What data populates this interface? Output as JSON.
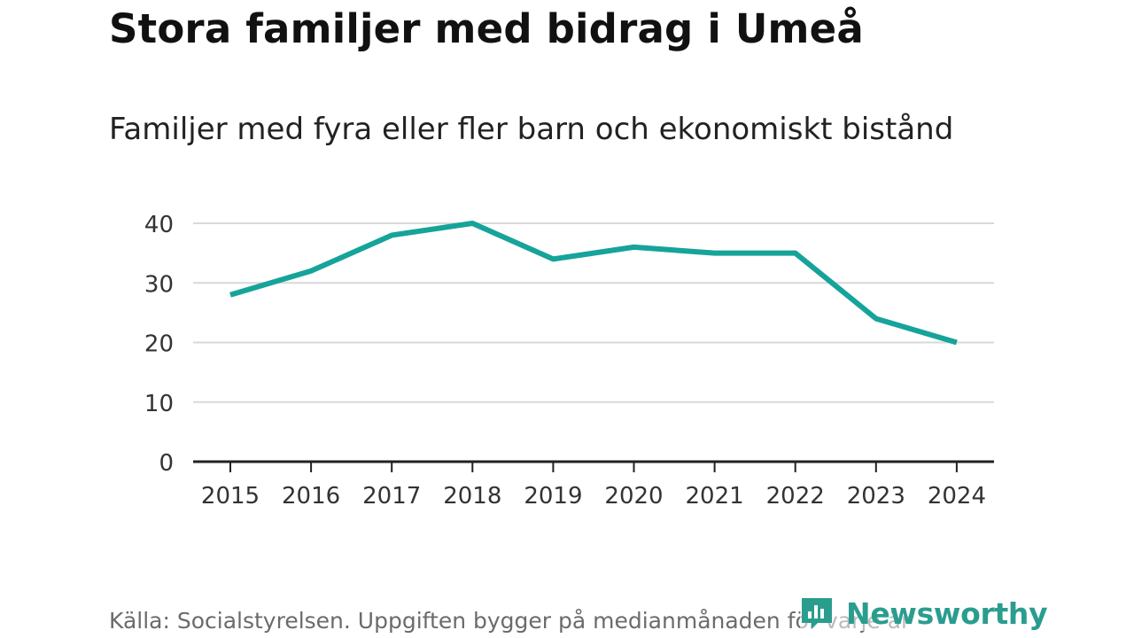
{
  "header": {
    "title": "Stora familjer med bidrag i Umeå",
    "subtitle": "Familjer med fyra eller fler barn och ekonomiskt bistånd"
  },
  "footer": {
    "source": "Källa: Socialstyrelsen. Uppgiften bygger på medianmånaden för varje år",
    "brand": "Newsworthy",
    "brand_icon": "chart-bubble-icon"
  },
  "colors": {
    "line": "#16a39a",
    "grid": "#d9d9d9",
    "axis": "#222222",
    "brand": "#2a9d8f"
  },
  "chart_data": {
    "type": "line",
    "title": "Stora familjer med bidrag i Umeå",
    "subtitle": "Familjer med fyra eller fler barn och ekonomiskt bistånd",
    "x": [
      "2015",
      "2016",
      "2017",
      "2018",
      "2019",
      "2020",
      "2021",
      "2022",
      "2023",
      "2024"
    ],
    "series": [
      {
        "values": [
          28,
          32,
          38,
          40,
          34,
          36,
          35,
          35,
          24,
          20
        ]
      }
    ],
    "yticks": [
      "0",
      "10",
      "20",
      "30",
      "40"
    ],
    "ylim": [
      0,
      40
    ],
    "grid": true,
    "legend": "none"
  }
}
